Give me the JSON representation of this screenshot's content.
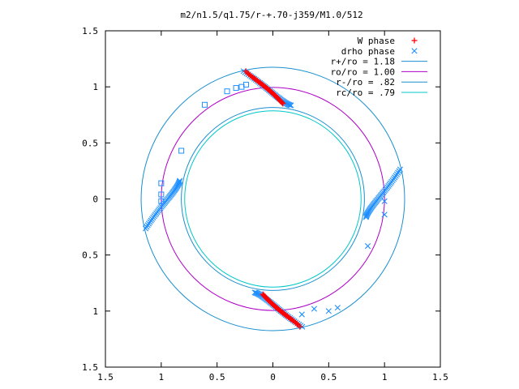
{
  "chart_data": {
    "type": "scatter",
    "title": "m2/n1.5/q1.75/r-+.70-j359/M1.0/512",
    "xlabel": "",
    "ylabel": "",
    "xlim": [
      -1.5,
      1.5
    ],
    "ylim": [
      -1.5,
      1.5
    ],
    "x_ticks": [
      -1.5,
      -1,
      -0.5,
      0,
      0.5,
      1,
      1.5
    ],
    "y_ticks": [
      -1.5,
      -1,
      -0.5,
      0,
      0.5,
      1,
      1.5
    ],
    "x_tick_labels": [
      "1.5",
      "1",
      "0.5",
      "0",
      "0.5",
      "1",
      "1.5"
    ],
    "y_tick_labels": [
      "1.5",
      "1",
      "0.5",
      "0",
      "0.5",
      "1",
      "1.5"
    ],
    "grid": false,
    "legend_placement": "top-right",
    "series": [
      {
        "name": "W phase",
        "marker": "plus",
        "color": "#ff0000"
      },
      {
        "name": "drho phase",
        "marker": "x",
        "color": "#1f8fff"
      },
      {
        "name": "r+/ro = 1.18",
        "marker": "circle-line",
        "color": "#1a8fd0",
        "radius": 1.18
      },
      {
        "name": "ro/ro = 1.00",
        "marker": "circle-line",
        "color": "#b000c8",
        "radius": 1.0
      },
      {
        "name": "r-/ro = .82",
        "marker": "circle-line",
        "color": "#1a8fd0",
        "radius": 0.82
      },
      {
        "name": "rc/ro = .79",
        "marker": "circle-line",
        "color": "#00c8c8",
        "radius": 0.79
      }
    ],
    "w_phase_arcs": [
      {
        "theta_start": 102,
        "theta_end": 84,
        "r_start": 1.165,
        "r_end": 0.855
      },
      {
        "theta_start": 282,
        "theta_end": 264,
        "r_start": 1.165,
        "r_end": 0.855
      }
    ],
    "drho_phase_arcs": [
      {
        "theta_start": 79,
        "theta_end": 103,
        "r_start": 0.85,
        "r_end": 1.17
      },
      {
        "theta_start": 169,
        "theta_end": 193,
        "r_start": 0.85,
        "r_end": 1.17
      },
      {
        "theta_start": 259,
        "theta_end": 283,
        "r_start": 0.85,
        "r_end": 1.17
      },
      {
        "theta_start": 349,
        "theta_end": 373,
        "r_start": 0.85,
        "r_end": 1.17
      }
    ],
    "drho_phase_outliers": [
      [
        0.85,
        -0.42
      ],
      [
        0.58,
        -0.97
      ],
      [
        0.5,
        -1.0
      ],
      [
        1.0,
        -0.14
      ],
      [
        1.0,
        -0.02
      ],
      [
        0.26,
        -1.03
      ],
      [
        0.37,
        -0.98
      ]
    ],
    "square_points": [
      [
        -0.82,
        0.43
      ],
      [
        -1.0,
        0.14
      ],
      [
        -1.0,
        0.04
      ],
      [
        -1.0,
        -0.02
      ],
      [
        -0.61,
        0.84
      ],
      [
        -0.41,
        0.96
      ],
      [
        -0.33,
        0.99
      ],
      [
        -0.28,
        1.0
      ],
      [
        -0.24,
        1.02
      ]
    ]
  }
}
